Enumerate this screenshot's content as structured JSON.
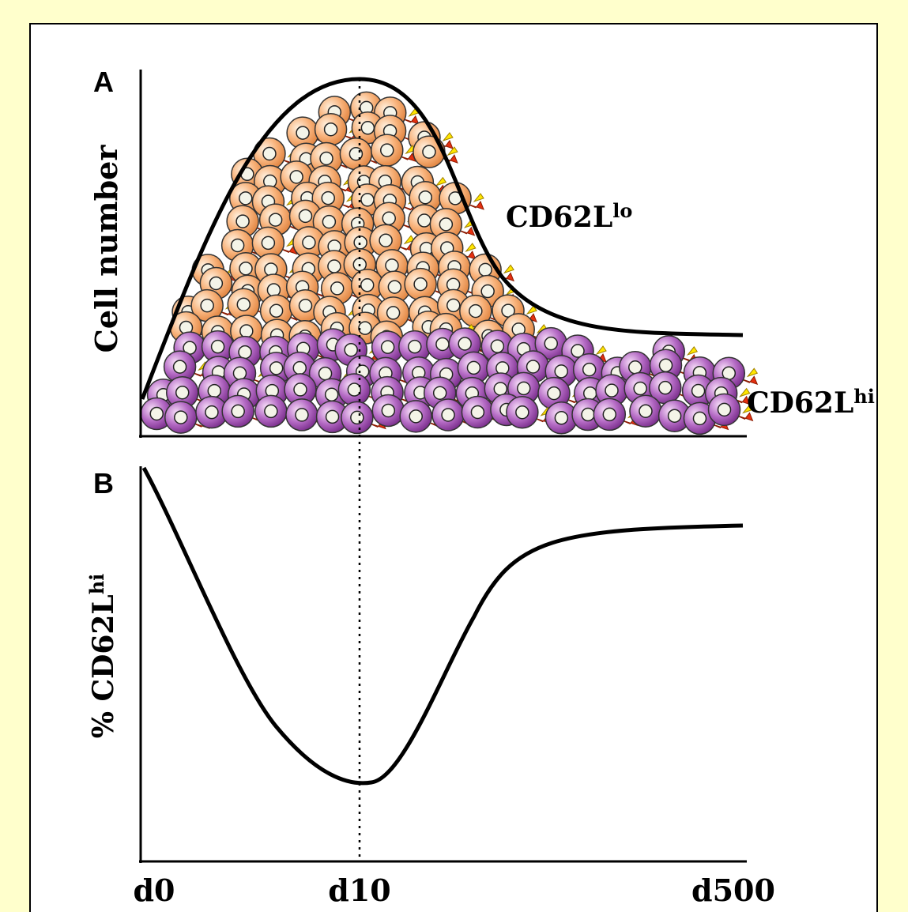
{
  "panel_a": {
    "letter": "A",
    "y_label": "Cell number",
    "labels": [
      {
        "text": "CD62L",
        "sup": "lo"
      },
      {
        "text": "CD62L",
        "sup": "hi"
      }
    ]
  },
  "panel_b": {
    "letter": "B",
    "y_label": "% CD62L",
    "y_label_sup": "hi"
  },
  "x_labels": [
    "d0",
    "d10",
    "d500"
  ]
}
